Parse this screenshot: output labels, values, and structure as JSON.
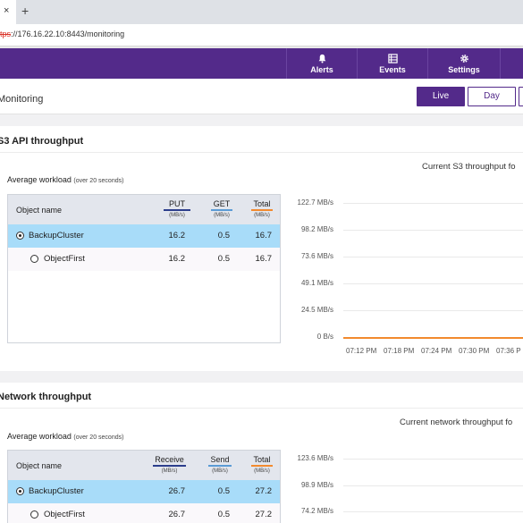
{
  "browser": {
    "close_glyph": "×",
    "new_tab_glyph": "+",
    "url_proto": "tps",
    "url_rest": "://176.16.22.10:8443/monitoring"
  },
  "nav": [
    {
      "label": "Alerts",
      "icon": "bell-icon"
    },
    {
      "label": "Events",
      "icon": "list-icon"
    },
    {
      "label": "Settings",
      "icon": "gear-icon"
    }
  ],
  "page": {
    "title": "Monitoring",
    "buttons": {
      "live": "Live",
      "day": "Day"
    }
  },
  "s3": {
    "title": "S3 API throughput",
    "avg_label": "Average workload",
    "avg_note": "(over 20 seconds)",
    "chart_title": "Current S3 throughput fo",
    "table": {
      "name_header": "Object name",
      "columns": [
        {
          "label": "PUT",
          "unit": "(MB/s)",
          "color": "#2c3e8c"
        },
        {
          "label": "GET",
          "unit": "(MB/s)",
          "color": "#5b9bd5"
        },
        {
          "label": "Total",
          "unit": "(MB/s)",
          "color": "#f28a2e"
        }
      ],
      "rows": [
        {
          "name": "BackupCluster",
          "put": "16.2",
          "get": "0.5",
          "total": "16.7"
        },
        {
          "name": "ObjectFirst",
          "put": "16.2",
          "get": "0.5",
          "total": "16.7"
        }
      ]
    },
    "y_ticks": [
      "122.7 MB/s",
      "98.2 MB/s",
      "73.6 MB/s",
      "49.1 MB/s",
      "24.5 MB/s",
      "0 B/s"
    ],
    "x_ticks": [
      "07:12 PM",
      "07:18 PM",
      "07:24 PM",
      "07:30 PM",
      "07:36 P"
    ]
  },
  "network": {
    "title": "Network throughput",
    "avg_label": "Average workload",
    "avg_note": "(over 20 seconds)",
    "chart_title": "Current network throughput fo",
    "table": {
      "name_header": "Object name",
      "columns": [
        {
          "label": "Receive",
          "unit": "(MB/s)",
          "color": "#2c3e8c"
        },
        {
          "label": "Send",
          "unit": "(MB/s)",
          "color": "#5b9bd5"
        },
        {
          "label": "Total",
          "unit": "(MB/s)",
          "color": "#f28a2e"
        }
      ],
      "rows": [
        {
          "name": "BackupCluster",
          "receive": "26.7",
          "send": "0.5",
          "total": "27.2"
        },
        {
          "name": "ObjectFirst",
          "receive": "26.7",
          "send": "0.5",
          "total": "27.2"
        }
      ]
    },
    "y_ticks": [
      "123.6 MB/s",
      "98.9 MB/s",
      "74.2 MB/s"
    ]
  },
  "colors": {
    "brand": "#532a8a",
    "selected_row": "#a8dcf9",
    "total_line": "#f28a2e"
  }
}
